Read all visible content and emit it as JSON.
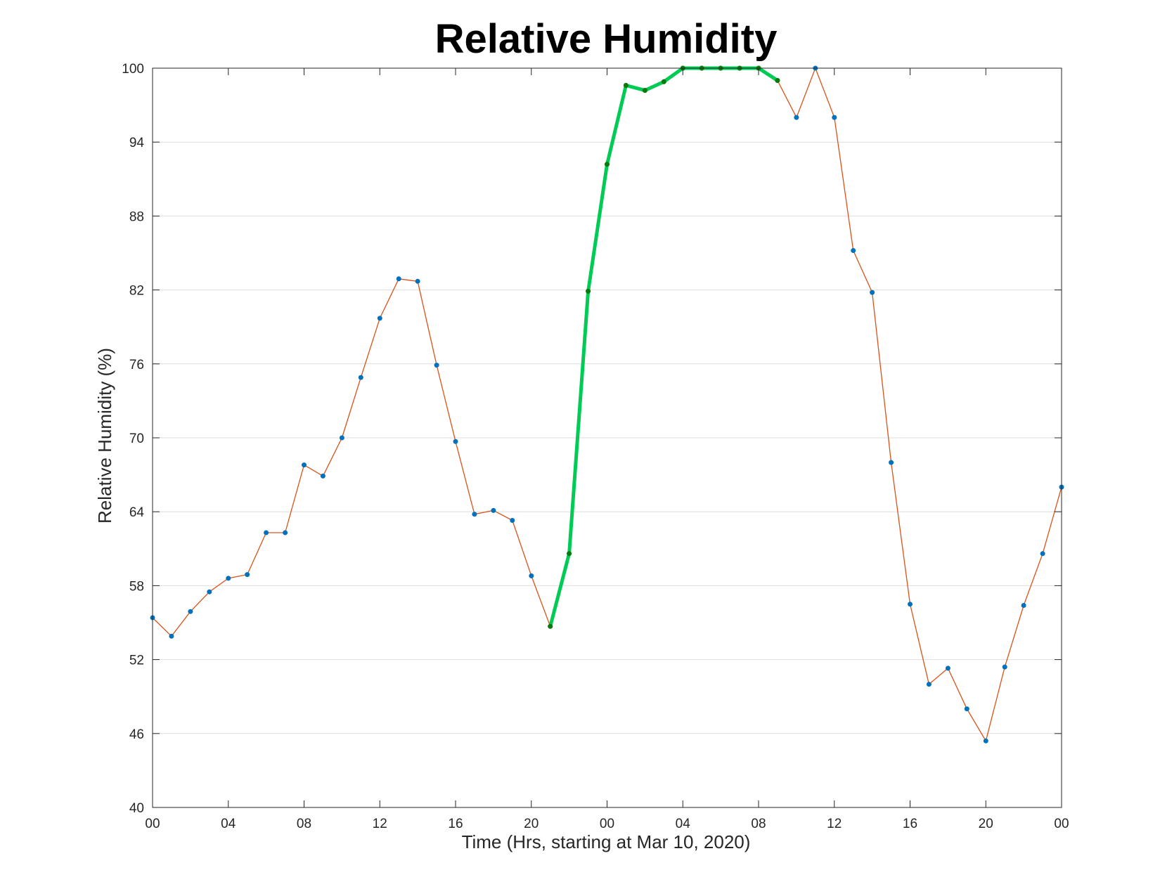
{
  "chart_data": {
    "type": "line",
    "title": "Relative Humidity",
    "xlabel": "Time (Hrs, starting at Mar 10, 2020)",
    "ylabel": "Relative Humidity (%)",
    "xlim": [
      0,
      48
    ],
    "ylim": [
      40,
      100
    ],
    "x_tick_values": [
      0,
      4,
      8,
      12,
      16,
      20,
      24,
      28,
      32,
      36,
      40,
      44,
      48
    ],
    "x_tick_labels": [
      "00",
      "04",
      "08",
      "12",
      "16",
      "20",
      "00",
      "04",
      "08",
      "12",
      "16",
      "20",
      "00"
    ],
    "y_tick_values": [
      40,
      46,
      52,
      58,
      64,
      70,
      76,
      82,
      88,
      94,
      100
    ],
    "y_tick_labels": [
      "40",
      "46",
      "52",
      "58",
      "64",
      "70",
      "76",
      "82",
      "88",
      "94",
      "100"
    ],
    "grid": "horizontal",
    "series": [
      {
        "color": "#d95319",
        "marker_color": "#0072bd",
        "x": [
          0,
          1,
          2,
          3,
          4,
          5,
          6,
          7,
          8,
          9,
          10,
          11,
          12,
          13,
          14,
          15,
          16,
          17,
          18,
          19,
          20,
          21,
          22,
          23,
          24,
          25,
          26,
          27,
          28,
          29,
          30,
          31,
          32,
          33,
          34,
          35,
          36,
          37,
          38,
          39,
          40,
          41,
          42,
          43,
          44,
          45,
          46,
          47,
          48
        ],
        "values": [
          55.4,
          53.9,
          55.9,
          57.5,
          58.6,
          58.9,
          62.3,
          62.3,
          67.8,
          66.9,
          70.0,
          74.9,
          79.7,
          82.9,
          82.7,
          75.9,
          69.7,
          63.8,
          64.1,
          63.3,
          58.8,
          54.7,
          60.6,
          81.9,
          92.2,
          98.6,
          98.2,
          98.9,
          100,
          100,
          100,
          100,
          100,
          99.0,
          96.0,
          100,
          96.0,
          85.2,
          81.8,
          68.0,
          56.5,
          50.0,
          51.3,
          48.0,
          45.4,
          51.4,
          56.4,
          60.6,
          66.0
        ]
      },
      {
        "color": "#00cc55",
        "marker_color": "#0a7a0a",
        "x": [
          21,
          22,
          23,
          24,
          25,
          26,
          27,
          28,
          29,
          30,
          31,
          32,
          33
        ],
        "values": [
          54.7,
          60.6,
          81.9,
          92.2,
          98.6,
          98.2,
          98.9,
          100,
          100,
          100,
          100,
          100,
          99.0
        ]
      }
    ]
  }
}
